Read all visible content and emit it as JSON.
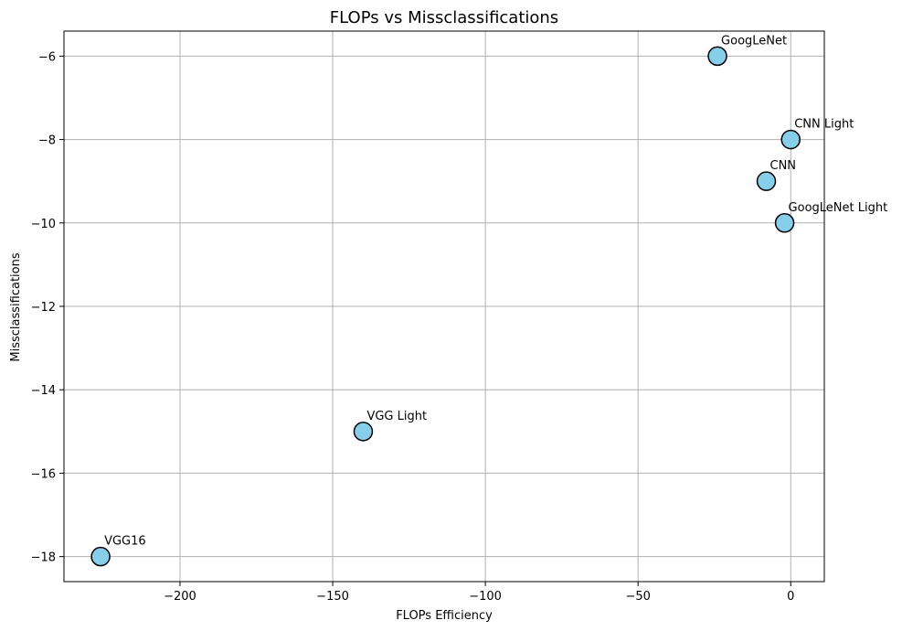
{
  "chart_data": {
    "type": "scatter",
    "title": "FLOPs vs Missclassifications",
    "xlabel": "FLOPs Efficiency",
    "ylabel": "Missclassifications",
    "xlim": [
      -238,
      11
    ],
    "ylim": [
      -18.6,
      -5.4
    ],
    "xticks": [
      -200,
      -150,
      -100,
      -50,
      0
    ],
    "yticks": [
      -18,
      -16,
      -14,
      -12,
      -10,
      -8,
      -6
    ],
    "xtick_labels": [
      "−200",
      "−150",
      "−100",
      "−50",
      "0"
    ],
    "ytick_labels": [
      "−18",
      "−16",
      "−14",
      "−12",
      "−10",
      "−8",
      "−6"
    ],
    "grid": true,
    "marker_color": "#87ceeb",
    "marker_edge_color": "#000000",
    "points": [
      {
        "label": "GoogLeNet",
        "x": -24,
        "y": -6
      },
      {
        "label": "CNN Light",
        "x": 0,
        "y": -8
      },
      {
        "label": "CNN",
        "x": -8,
        "y": -9
      },
      {
        "label": "GoogLeNet Light",
        "x": -2,
        "y": -10
      },
      {
        "label": "VGG Light",
        "x": -140,
        "y": -15
      },
      {
        "label": "VGG16",
        "x": -226,
        "y": -18
      }
    ]
  }
}
